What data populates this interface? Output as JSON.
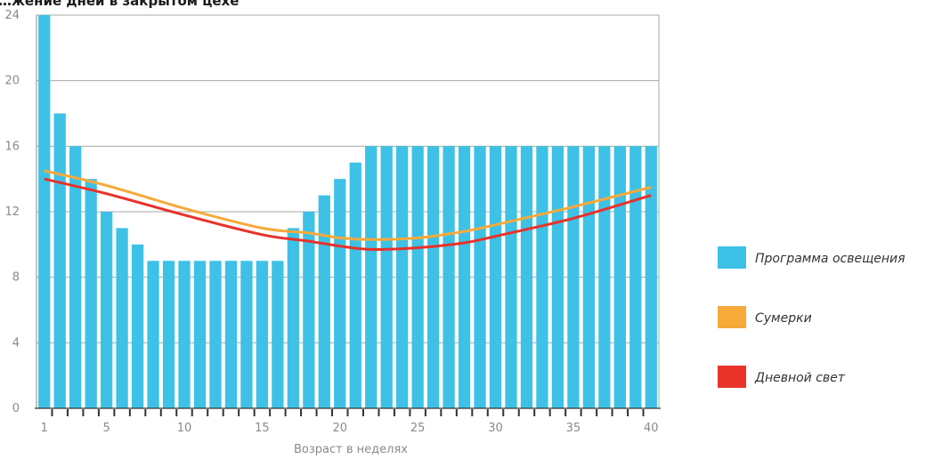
{
  "chart_data": {
    "type": "bar",
    "title": "…жение дней в закрытом цехе",
    "xlabel": "Возраст в неделях",
    "ylabel": "",
    "ylim": [
      0,
      24
    ],
    "yticks": [
      0,
      4,
      8,
      12,
      16,
      20,
      24
    ],
    "xticks": [
      1,
      5,
      10,
      15,
      20,
      25,
      30,
      35,
      40
    ],
    "grid": true,
    "legend_position": "right",
    "categories": [
      1,
      2,
      3,
      4,
      5,
      6,
      7,
      8,
      9,
      10,
      11,
      12,
      13,
      14,
      15,
      16,
      17,
      18,
      19,
      20,
      21,
      22,
      23,
      24,
      25,
      26,
      27,
      28,
      29,
      30,
      31,
      32,
      33,
      34,
      35,
      36,
      37,
      38,
      39,
      40
    ],
    "series": [
      {
        "name": "Программа освещения",
        "kind": "bar",
        "color": "#3ec1e6",
        "values": [
          24,
          18,
          16,
          14,
          12,
          11,
          10,
          9,
          9,
          9,
          9,
          9,
          9,
          9,
          9,
          9,
          11,
          12,
          13,
          14,
          15,
          16,
          16,
          16,
          16,
          16,
          16,
          16,
          16,
          16,
          16,
          16,
          16,
          16,
          16,
          16,
          16,
          16,
          16,
          16
        ]
      },
      {
        "name": "Сумерки",
        "kind": "line",
        "color": "#f7a93a",
        "x": [
          1,
          5,
          10,
          15,
          18,
          20,
          22,
          25,
          28,
          30,
          35,
          40
        ],
        "values": [
          14.5,
          13.6,
          12.2,
          11.0,
          10.7,
          10.4,
          10.3,
          10.4,
          10.8,
          11.2,
          12.3,
          13.5
        ]
      },
      {
        "name": "Дневной свет",
        "kind": "line",
        "color": "#e8322a",
        "x": [
          1,
          5,
          10,
          15,
          18,
          20,
          22,
          25,
          28,
          30,
          35,
          40
        ],
        "values": [
          14.0,
          13.1,
          11.8,
          10.6,
          10.2,
          9.9,
          9.7,
          9.8,
          10.1,
          10.5,
          11.6,
          13.0
        ]
      }
    ]
  }
}
